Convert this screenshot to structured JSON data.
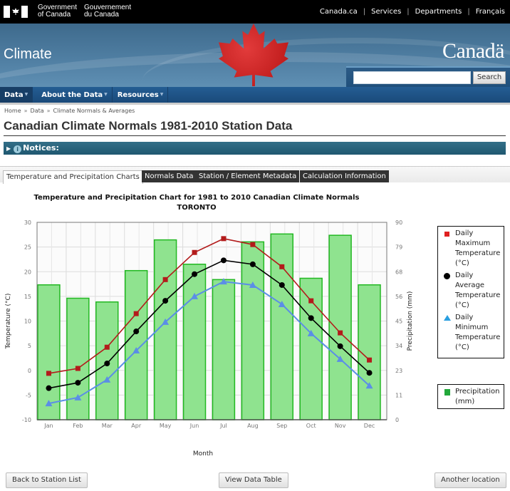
{
  "fip": {
    "gov_en_line1": "Government",
    "gov_en_line2": "of Canada",
    "gov_fr_line1": "Gouvernement",
    "gov_fr_line2": "du Canada",
    "links": [
      "Canada.ca",
      "Services",
      "Departments",
      "Français"
    ]
  },
  "banner": {
    "site_title": "Climate",
    "wordmark": "Canadä",
    "search_placeholder": "",
    "search_button": "Search"
  },
  "nav": {
    "items": [
      {
        "label": "Data"
      },
      {
        "label": "About the Data"
      },
      {
        "label": "Resources"
      }
    ]
  },
  "breadcrumb": [
    "Home",
    "Data",
    "Climate Normals & Averages"
  ],
  "page_title": "Canadian Climate Normals 1981-2010 Station Data",
  "notices": {
    "label": "Notices:"
  },
  "tabs": [
    {
      "label": "Temperature and Precipitation Charts",
      "active": true
    },
    {
      "label": "Normals Data",
      "active": false
    },
    {
      "label": "Station / Element Metadata",
      "active": false
    },
    {
      "label": "Calculation Information",
      "active": false
    }
  ],
  "colors": {
    "max_temp": "#b31b1b",
    "avg_temp": "#000000",
    "min_temp": "#5b8ee6",
    "precip_fill": "#8fe38f",
    "precip_stroke": "#22b822"
  },
  "chart_data": {
    "type": "bar+line",
    "title": "Temperature and Precipitation Chart for 1981 to 2010 Canadian Climate Normals",
    "subtitle": "TORONTO",
    "xlabel": "Month",
    "ylabel": "Temperature (°C)",
    "ylabel_right": "Precipitation (mm)",
    "categories": [
      "Jan",
      "Feb",
      "Mar",
      "Apr",
      "May",
      "Jun",
      "Jul",
      "Aug",
      "Sep",
      "Oct",
      "Nov",
      "Dec"
    ],
    "ylim": [
      -10,
      30
    ],
    "yticks": [
      -10,
      -5,
      0,
      5,
      10,
      15,
      20,
      25,
      30
    ],
    "ylim_right": [
      0,
      90
    ],
    "yticks_right": [
      0,
      11,
      23,
      34,
      45,
      56,
      68,
      79,
      90
    ],
    "grid": true,
    "legend_position": "right",
    "series": [
      {
        "name": "Daily Maximum Temperature (°C)",
        "type": "line",
        "marker": "square",
        "axis": "left",
        "values": [
          -0.6,
          0.4,
          4.7,
          11.5,
          18.4,
          23.9,
          26.7,
          25.5,
          21.0,
          14.1,
          7.6,
          2.1
        ]
      },
      {
        "name": "Daily Average Temperature (°C)",
        "type": "line",
        "marker": "circle",
        "axis": "left",
        "values": [
          -3.6,
          -2.5,
          1.4,
          7.9,
          14.1,
          19.5,
          22.3,
          21.5,
          17.3,
          10.6,
          4.9,
          -0.5
        ]
      },
      {
        "name": "Daily Minimum Temperature (°C)",
        "type": "line",
        "marker": "triangle",
        "axis": "left",
        "values": [
          -6.7,
          -5.5,
          -1.9,
          4.0,
          9.8,
          15.0,
          18.0,
          17.3,
          13.4,
          7.5,
          2.3,
          -3.1
        ]
      },
      {
        "name": "Precipitation (mm)",
        "type": "bar",
        "axis": "right",
        "values": [
          61.5,
          55.4,
          53.7,
          68.0,
          82.0,
          70.9,
          63.9,
          81.1,
          84.7,
          64.5,
          84.1,
          61.5
        ]
      }
    ],
    "legend": {
      "temp": [
        {
          "line1": "Daily",
          "line2": "Maximum",
          "line3": "Temperature",
          "line4": "(°C)"
        },
        {
          "line1": "Daily",
          "line2": "Average",
          "line3": "Temperature",
          "line4": "(°C)"
        },
        {
          "line1": "Daily",
          "line2": "Minimum",
          "line3": "Temperature",
          "line4": "(°C)"
        }
      ],
      "precip": {
        "line1": "Precipitation",
        "line2": "(mm)"
      }
    }
  },
  "buttons": {
    "back": "Back to Station List",
    "view_table": "View Data Table",
    "another": "Another location"
  }
}
